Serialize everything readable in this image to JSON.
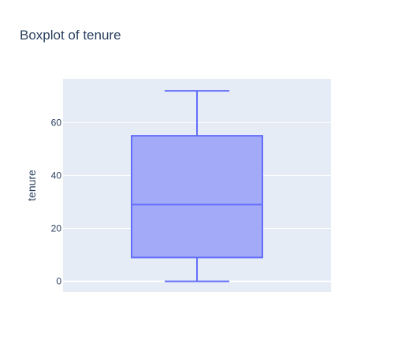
{
  "chart_data": {
    "type": "box",
    "title": "Boxplot of tenure",
    "xlabel": "",
    "ylabel": "tenure",
    "ylim": [
      -4,
      76.5
    ],
    "yticks": [
      0,
      20,
      40,
      60
    ],
    "grid": true,
    "legend": "none",
    "series": [
      {
        "min": 0,
        "q1": 9,
        "median": 29,
        "q3": 55,
        "max": 72
      }
    ],
    "colors": {
      "box_line": "#636efa",
      "box_fill": "#a3aaf7",
      "plot_background": "#e5ecf6",
      "grid": "#ffffff",
      "text": "#2a3f5f"
    }
  }
}
